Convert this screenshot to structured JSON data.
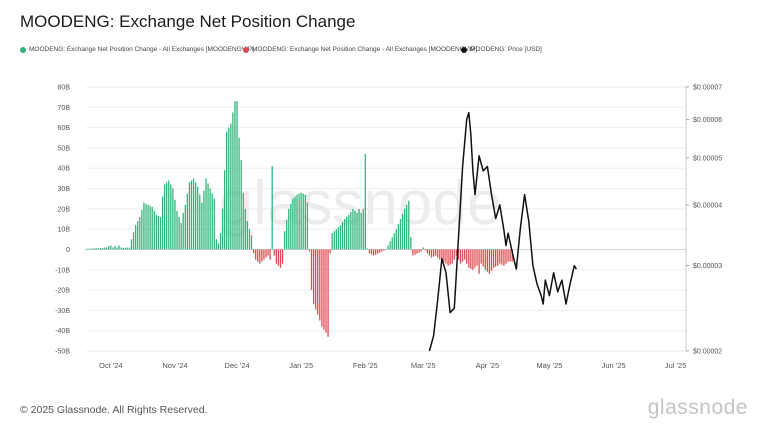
{
  "title": "MOODENG: Exchange Net Position Change",
  "legend": [
    {
      "name": "MOODENG: Exchange Net Position Change - All Exchanges [MOODENGVIP]",
      "color": "#2fb57a"
    },
    {
      "name": "MOODENG: Exchange Net Position Change - All Exchanges [MOODENGVIP]",
      "color": "#e04a4f"
    },
    {
      "name": "MOODENG: Price [USD]",
      "color": "#111111"
    }
  ],
  "footer": {
    "copyright": "© 2025 Glassnode. All Rights Reserved.",
    "brand": "glassnode",
    "watermark": "glassnode"
  },
  "chart_data": {
    "type": "bar",
    "positive_color": "#2fb57a",
    "negative_color": "#e04a4f",
    "price_color": "#111111",
    "grid": true,
    "legend_position": "top",
    "x_range": [
      0,
      290
    ],
    "y_left": {
      "ylim": [
        -50,
        80
      ],
      "ticks": [
        -50,
        -40,
        -30,
        -20,
        -10,
        0,
        10,
        20,
        30,
        40,
        50,
        60,
        70,
        80
      ],
      "tick_labels": [
        "-50B",
        "-40B",
        "-30B",
        "-20B",
        "-10B",
        "0",
        "10B",
        "20B",
        "30B",
        "40B",
        "50B",
        "60B",
        "70B",
        "80B"
      ]
    },
    "y_right": {
      "scale": "log",
      "ylim": [
        2e-05,
        7e-05
      ],
      "ticks": [
        2e-05,
        3e-05,
        4e-05,
        5e-05,
        6e-05,
        7e-05
      ],
      "tick_labels": [
        "$0.00002",
        "$0.00003",
        "$0.00004",
        "$0.00005",
        "$0.00006",
        "$0.00007"
      ]
    },
    "x_ticks": [
      {
        "x": 12,
        "label": "Oct '24"
      },
      {
        "x": 43,
        "label": "Nov '24"
      },
      {
        "x": 73,
        "label": "Dec '24"
      },
      {
        "x": 104,
        "label": "Jan '25"
      },
      {
        "x": 135,
        "label": "Feb '25"
      },
      {
        "x": 163,
        "label": "Mar '25"
      },
      {
        "x": 194,
        "label": "Apr '25"
      },
      {
        "x": 224,
        "label": "May '25"
      },
      {
        "x": 255,
        "label": "Jun '25"
      },
      {
        "x": 285,
        "label": "Jul '25"
      }
    ],
    "net_position_keypoints": [
      [
        0,
        0.3
      ],
      [
        8,
        0.8
      ],
      [
        10,
        1
      ],
      [
        12,
        2
      ],
      [
        13,
        1
      ],
      [
        14,
        1.8
      ],
      [
        15,
        1
      ],
      [
        16,
        2
      ],
      [
        17,
        1
      ],
      [
        18,
        0.8
      ],
      [
        21,
        0.9
      ],
      [
        22,
        5
      ],
      [
        24,
        12
      ],
      [
        26,
        16
      ],
      [
        28,
        23
      ],
      [
        30,
        22
      ],
      [
        32,
        21
      ],
      [
        34,
        17
      ],
      [
        36,
        16
      ],
      [
        37,
        26
      ],
      [
        38,
        32
      ],
      [
        40,
        34
      ],
      [
        42,
        30
      ],
      [
        44,
        19
      ],
      [
        46,
        13
      ],
      [
        47,
        18
      ],
      [
        48,
        22
      ],
      [
        50,
        33
      ],
      [
        52,
        35
      ],
      [
        54,
        31
      ],
      [
        56,
        23
      ],
      [
        57,
        29
      ],
      [
        58,
        35
      ],
      [
        60,
        30
      ],
      [
        62,
        25
      ],
      [
        63,
        5
      ],
      [
        64,
        3
      ],
      [
        65,
        8
      ],
      [
        66,
        20
      ],
      [
        68,
        58
      ],
      [
        70,
        62
      ],
      [
        72,
        73
      ],
      [
        73,
        73
      ],
      [
        74,
        55
      ],
      [
        75,
        44
      ],
      [
        76,
        28
      ],
      [
        77,
        20
      ],
      [
        78,
        14
      ],
      [
        79,
        10
      ],
      [
        80,
        7
      ],
      [
        81,
        -2
      ],
      [
        82,
        -5
      ],
      [
        84,
        -7
      ],
      [
        86,
        -5
      ],
      [
        88,
        -3
      ],
      [
        89,
        -5
      ],
      [
        90,
        41
      ],
      [
        91,
        -3
      ],
      [
        92,
        -7
      ],
      [
        94,
        -9
      ],
      [
        95,
        -7
      ],
      [
        96,
        9
      ],
      [
        98,
        20
      ],
      [
        100,
        25
      ],
      [
        102,
        27
      ],
      [
        104,
        28
      ],
      [
        106,
        27
      ],
      [
        107,
        23
      ],
      [
        108,
        -1
      ],
      [
        109,
        -20
      ],
      [
        110,
        -27
      ],
      [
        112,
        -32
      ],
      [
        114,
        -38
      ],
      [
        116,
        -41
      ],
      [
        117,
        -43
      ],
      [
        118,
        -2
      ],
      [
        119,
        8
      ],
      [
        121,
        10
      ],
      [
        123,
        12
      ],
      [
        125,
        15
      ],
      [
        127,
        17
      ],
      [
        129,
        20
      ],
      [
        131,
        18
      ],
      [
        132,
        20
      ],
      [
        133,
        18
      ],
      [
        134,
        20
      ],
      [
        135,
        47
      ],
      [
        136,
        0.5
      ],
      [
        137,
        -2
      ],
      [
        139,
        -3
      ],
      [
        141,
        -2
      ],
      [
        143,
        -1
      ],
      [
        145,
        0
      ],
      [
        146,
        2
      ],
      [
        148,
        6
      ],
      [
        150,
        10
      ],
      [
        152,
        15
      ],
      [
        154,
        20
      ],
      [
        156,
        24
      ],
      [
        157,
        6
      ],
      [
        158,
        -3
      ],
      [
        160,
        -2
      ],
      [
        162,
        -1
      ],
      [
        163,
        1
      ],
      [
        165,
        -2
      ],
      [
        167,
        -4
      ],
      [
        169,
        -3
      ],
      [
        171,
        -5
      ],
      [
        173,
        -6
      ],
      [
        175,
        -8
      ],
      [
        177,
        -7
      ],
      [
        179,
        -3
      ],
      [
        181,
        -7
      ],
      [
        183,
        -5
      ],
      [
        185,
        -9
      ],
      [
        187,
        -10
      ],
      [
        189,
        -8
      ],
      [
        190,
        -12
      ],
      [
        191,
        -7
      ],
      [
        193,
        -10
      ],
      [
        195,
        -12
      ],
      [
        197,
        -9
      ],
      [
        199,
        -8
      ],
      [
        200,
        -7
      ],
      [
        202,
        -8
      ],
      [
        204,
        -6
      ],
      [
        206,
        -6
      ]
    ],
    "price_keypoints": [
      [
        166,
        2e-05
      ],
      [
        168,
        2.15e-05
      ],
      [
        170,
        2.55e-05
      ],
      [
        172,
        3.1e-05
      ],
      [
        174,
        2.9e-05
      ],
      [
        176,
        2.4e-05
      ],
      [
        178,
        2.45e-05
      ],
      [
        180,
        3.4e-05
      ],
      [
        182,
        4.8e-05
      ],
      [
        184,
        6e-05
      ],
      [
        185,
        6.2e-05
      ],
      [
        186,
        5.6e-05
      ],
      [
        187,
        4.7e-05
      ],
      [
        188,
        4.2e-05
      ],
      [
        190,
        5.05e-05
      ],
      [
        192,
        4.7e-05
      ],
      [
        194,
        4.8e-05
      ],
      [
        196,
        4.2e-05
      ],
      [
        198,
        3.75e-05
      ],
      [
        200,
        4e-05
      ],
      [
        202,
        3.55e-05
      ],
      [
        203,
        3.3e-05
      ],
      [
        204,
        3.5e-05
      ],
      [
        206,
        3.2e-05
      ],
      [
        208,
        2.95e-05
      ],
      [
        210,
        3.6e-05
      ],
      [
        212,
        4.2e-05
      ],
      [
        214,
        3.7e-05
      ],
      [
        216,
        3e-05
      ],
      [
        218,
        2.75e-05
      ],
      [
        220,
        2.6e-05
      ],
      [
        221,
        2.5e-05
      ],
      [
        222,
        2.8e-05
      ],
      [
        224,
        2.6e-05
      ],
      [
        226,
        2.9e-05
      ],
      [
        228,
        2.65e-05
      ],
      [
        230,
        2.8e-05
      ],
      [
        232,
        2.5e-05
      ],
      [
        234,
        2.75e-05
      ],
      [
        236,
        3e-05
      ],
      [
        237,
        2.95e-05
      ]
    ]
  }
}
